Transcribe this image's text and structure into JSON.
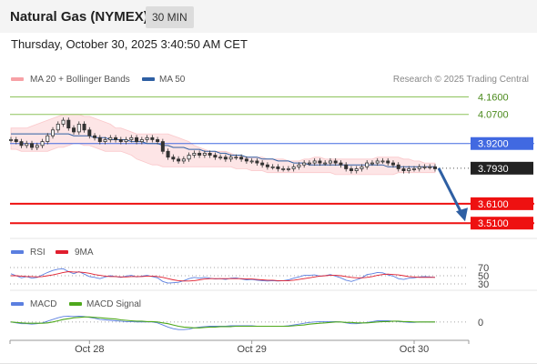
{
  "header": {
    "title": "Natural Gas (NYMEX)",
    "timeframe": "30 MIN",
    "timestamp": "Thursday, October 30, 2025 3:40:50 AM CET"
  },
  "colors": {
    "price": "#333333",
    "bollinger": "#f7a1a6",
    "ma50": "#2e5fa3",
    "resistance": "#8dc35c",
    "support": "#ee1111",
    "pivot": "#4169e1",
    "current": "#222222",
    "arrow": "#2e5fa3",
    "rsi": "#5b7fe0",
    "rsi_ma": "#e01e2e",
    "macd": "#5b7fe0",
    "macd_signal": "#4ea81c"
  },
  "chart_data": {
    "type": "line",
    "source": "Research © 2025 Trading Central",
    "legend": [
      {
        "name": "MA 20 + Bollinger Bands",
        "color": "#f7a1a6"
      },
      {
        "name": "MA 50",
        "color": "#2e5fa3"
      }
    ],
    "x_ticks": [
      "Oct 28",
      "Oct 29",
      "Oct 30"
    ],
    "x_tick_index": [
      15,
      46,
      77
    ],
    "y_range": [
      3.45,
      4.2
    ],
    "levels": [
      {
        "label": "4.1600",
        "value": 4.16,
        "kind": "resistance"
      },
      {
        "label": "4.0700",
        "value": 4.07,
        "kind": "resistance"
      },
      {
        "label": "3.9200",
        "value": 3.92,
        "kind": "pivot"
      },
      {
        "label": "3.7930",
        "value": 3.793,
        "kind": "current"
      },
      {
        "label": "3.6100",
        "value": 3.61,
        "kind": "support"
      },
      {
        "label": "3.5100",
        "value": 3.51,
        "kind": "support"
      }
    ],
    "price": [
      3.94,
      3.93,
      3.91,
      3.92,
      3.9,
      3.91,
      3.93,
      3.96,
      3.99,
      4.02,
      4.04,
      4.0,
      3.98,
      4.02,
      3.99,
      3.96,
      3.95,
      3.93,
      3.94,
      3.95,
      3.94,
      3.93,
      3.94,
      3.95,
      3.93,
      3.94,
      3.95,
      3.94,
      3.93,
      3.88,
      3.85,
      3.84,
      3.83,
      3.84,
      3.86,
      3.87,
      3.86,
      3.87,
      3.86,
      3.85,
      3.85,
      3.84,
      3.85,
      3.85,
      3.84,
      3.83,
      3.83,
      3.82,
      3.81,
      3.8,
      3.8,
      3.79,
      3.79,
      3.79,
      3.8,
      3.81,
      3.82,
      3.82,
      3.83,
      3.82,
      3.82,
      3.83,
      3.82,
      3.81,
      3.79,
      3.78,
      3.79,
      3.8,
      3.82,
      3.82,
      3.83,
      3.83,
      3.82,
      3.81,
      3.79,
      3.78,
      3.79,
      3.79,
      3.8,
      3.8,
      3.8,
      3.79
    ],
    "bb_upper": [
      4.0,
      4.0,
      4.0,
      4.0,
      4.01,
      4.02,
      4.03,
      4.04,
      4.05,
      4.06,
      4.07,
      4.07,
      4.07,
      4.07,
      4.06,
      4.06,
      4.05,
      4.04,
      4.03,
      4.02,
      4.0,
      4.0,
      3.99,
      3.98,
      3.97,
      3.97,
      3.97,
      3.97,
      3.97,
      3.97,
      3.97,
      3.96,
      3.95,
      3.94,
      3.93,
      3.91,
      3.9,
      3.89,
      3.88,
      3.88,
      3.88,
      3.88,
      3.87,
      3.86,
      3.86,
      3.85,
      3.85,
      3.85,
      3.85,
      3.84,
      3.84,
      3.84,
      3.84,
      3.83,
      3.83,
      3.83,
      3.84,
      3.84,
      3.85,
      3.85,
      3.84,
      3.84,
      3.84,
      3.84,
      3.84,
      3.84,
      3.84,
      3.84,
      3.84,
      3.84,
      3.85,
      3.85,
      3.85,
      3.85,
      3.85,
      3.84,
      3.84,
      3.83,
      3.83,
      3.82,
      3.82,
      3.82
    ],
    "bb_lower": [
      3.89,
      3.89,
      3.88,
      3.88,
      3.88,
      3.88,
      3.88,
      3.88,
      3.89,
      3.9,
      3.9,
      3.91,
      3.92,
      3.92,
      3.91,
      3.91,
      3.9,
      3.89,
      3.88,
      3.88,
      3.88,
      3.88,
      3.87,
      3.86,
      3.84,
      3.83,
      3.82,
      3.81,
      3.81,
      3.8,
      3.8,
      3.8,
      3.8,
      3.8,
      3.8,
      3.8,
      3.8,
      3.8,
      3.8,
      3.8,
      3.8,
      3.8,
      3.8,
      3.79,
      3.79,
      3.79,
      3.78,
      3.78,
      3.78,
      3.77,
      3.77,
      3.77,
      3.77,
      3.77,
      3.77,
      3.77,
      3.77,
      3.77,
      3.77,
      3.77,
      3.77,
      3.77,
      3.76,
      3.76,
      3.76,
      3.76,
      3.76,
      3.76,
      3.76,
      3.76,
      3.76,
      3.76,
      3.76,
      3.76,
      3.77,
      3.77,
      3.77,
      3.77,
      3.77,
      3.77,
      3.77,
      3.77
    ],
    "ma50": [
      3.97,
      3.97,
      3.97,
      3.97,
      3.97,
      3.97,
      3.97,
      3.97,
      3.97,
      3.97,
      3.97,
      3.97,
      3.96,
      3.96,
      3.96,
      3.96,
      3.95,
      3.95,
      3.95,
      3.94,
      3.94,
      3.94,
      3.94,
      3.93,
      3.93,
      3.93,
      3.92,
      3.92,
      3.92,
      3.91,
      3.91,
      3.9,
      3.9,
      3.9,
      3.89,
      3.89,
      3.89,
      3.88,
      3.88,
      3.88,
      3.87,
      3.87,
      3.86,
      3.86,
      3.86,
      3.85,
      3.85,
      3.85,
      3.84,
      3.84,
      3.84,
      3.83,
      3.83,
      3.83,
      3.82,
      3.82,
      3.82,
      3.81,
      3.81,
      3.81,
      3.81,
      3.81,
      3.81,
      3.81,
      3.81,
      3.81,
      3.81,
      3.81,
      3.81,
      3.81,
      3.81,
      3.81,
      3.8,
      3.8,
      3.8,
      3.8,
      3.8,
      3.8,
      3.8,
      3.8,
      3.8,
      3.8
    ],
    "projection": {
      "from": 3.793,
      "to": 3.51
    },
    "rsi": {
      "labels": [
        "RSI",
        "9MA"
      ],
      "ticks": [
        "70",
        "50",
        "30"
      ],
      "tick_values": [
        70,
        50,
        30
      ],
      "range": [
        20,
        80
      ],
      "values": [
        55,
        50,
        45,
        48,
        44,
        46,
        52,
        58,
        63,
        66,
        67,
        60,
        55,
        60,
        54,
        48,
        46,
        43,
        47,
        50,
        48,
        46,
        49,
        51,
        47,
        49,
        51,
        48,
        45,
        36,
        32,
        33,
        34,
        38,
        43,
        46,
        44,
        46,
        44,
        42,
        43,
        41,
        44,
        45,
        42,
        40,
        41,
        39,
        38,
        37,
        38,
        37,
        38,
        40,
        44,
        47,
        51,
        51,
        52,
        49,
        50,
        53,
        49,
        45,
        39,
        36,
        40,
        45,
        53,
        55,
        58,
        57,
        52,
        49,
        43,
        41,
        44,
        45,
        47,
        48,
        47,
        46
      ],
      "ma": [
        50,
        50,
        49,
        48,
        48,
        47,
        48,
        50,
        52,
        55,
        58,
        60,
        59,
        59,
        58,
        56,
        53,
        51,
        49,
        48,
        48,
        47,
        47,
        48,
        48,
        48,
        49,
        49,
        48,
        46,
        43,
        40,
        38,
        37,
        37,
        38,
        40,
        42,
        43,
        43,
        43,
        43,
        43,
        43,
        43,
        42,
        42,
        41,
        40,
        39,
        39,
        38,
        38,
        38,
        39,
        41,
        43,
        45,
        47,
        49,
        50,
        51,
        51,
        50,
        48,
        46,
        45,
        45,
        46,
        48,
        51,
        53,
        54,
        53,
        52,
        50,
        48,
        47,
        46,
        46,
        46,
        46
      ]
    },
    "macd": {
      "labels": [
        "MACD",
        "MACD Signal"
      ],
      "ticks": [
        "0"
      ],
      "tick_values": [
        0
      ],
      "range": [
        -0.035,
        0.03
      ],
      "values": [
        0.0,
        -0.002,
        -0.004,
        -0.004,
        -0.005,
        -0.004,
        -0.002,
        0.002,
        0.006,
        0.01,
        0.013,
        0.014,
        0.013,
        0.014,
        0.013,
        0.011,
        0.009,
        0.006,
        0.005,
        0.004,
        0.003,
        0.002,
        0.001,
        0.001,
        0.0,
        0.0,
        0.0,
        0.0,
        -0.002,
        -0.007,
        -0.012,
        -0.016,
        -0.018,
        -0.018,
        -0.017,
        -0.014,
        -0.012,
        -0.011,
        -0.01,
        -0.01,
        -0.01,
        -0.01,
        -0.009,
        -0.009,
        -0.009,
        -0.009,
        -0.009,
        -0.01,
        -0.01,
        -0.01,
        -0.01,
        -0.01,
        -0.01,
        -0.009,
        -0.007,
        -0.005,
        -0.003,
        -0.001,
        0.0,
        0.001,
        0.001,
        0.001,
        0.001,
        0.0,
        -0.002,
        -0.004,
        -0.004,
        -0.003,
        -0.001,
        0.001,
        0.003,
        0.003,
        0.003,
        0.002,
        0.001,
        0.0,
        -0.001,
        -0.001,
        0.0,
        0.0,
        0.0,
        0.0
      ],
      "signal": [
        0.0,
        -0.001,
        -0.002,
        -0.003,
        -0.003,
        -0.003,
        -0.003,
        -0.002,
        0.0,
        0.003,
        0.006,
        0.008,
        0.01,
        0.011,
        0.012,
        0.012,
        0.011,
        0.01,
        0.009,
        0.008,
        0.007,
        0.005,
        0.004,
        0.003,
        0.002,
        0.002,
        0.001,
        0.001,
        0.0,
        -0.002,
        -0.004,
        -0.007,
        -0.01,
        -0.012,
        -0.013,
        -0.014,
        -0.014,
        -0.013,
        -0.012,
        -0.012,
        -0.011,
        -0.011,
        -0.011,
        -0.01,
        -0.01,
        -0.01,
        -0.01,
        -0.01,
        -0.01,
        -0.01,
        -0.01,
        -0.01,
        -0.01,
        -0.01,
        -0.009,
        -0.008,
        -0.007,
        -0.005,
        -0.004,
        -0.003,
        -0.002,
        -0.001,
        0.0,
        0.0,
        -0.001,
        -0.001,
        -0.002,
        -0.002,
        -0.002,
        -0.001,
        0.0,
        0.001,
        0.001,
        0.002,
        0.002,
        0.001,
        0.001,
        0.0,
        0.0,
        0.0,
        0.0,
        0.0
      ]
    }
  }
}
